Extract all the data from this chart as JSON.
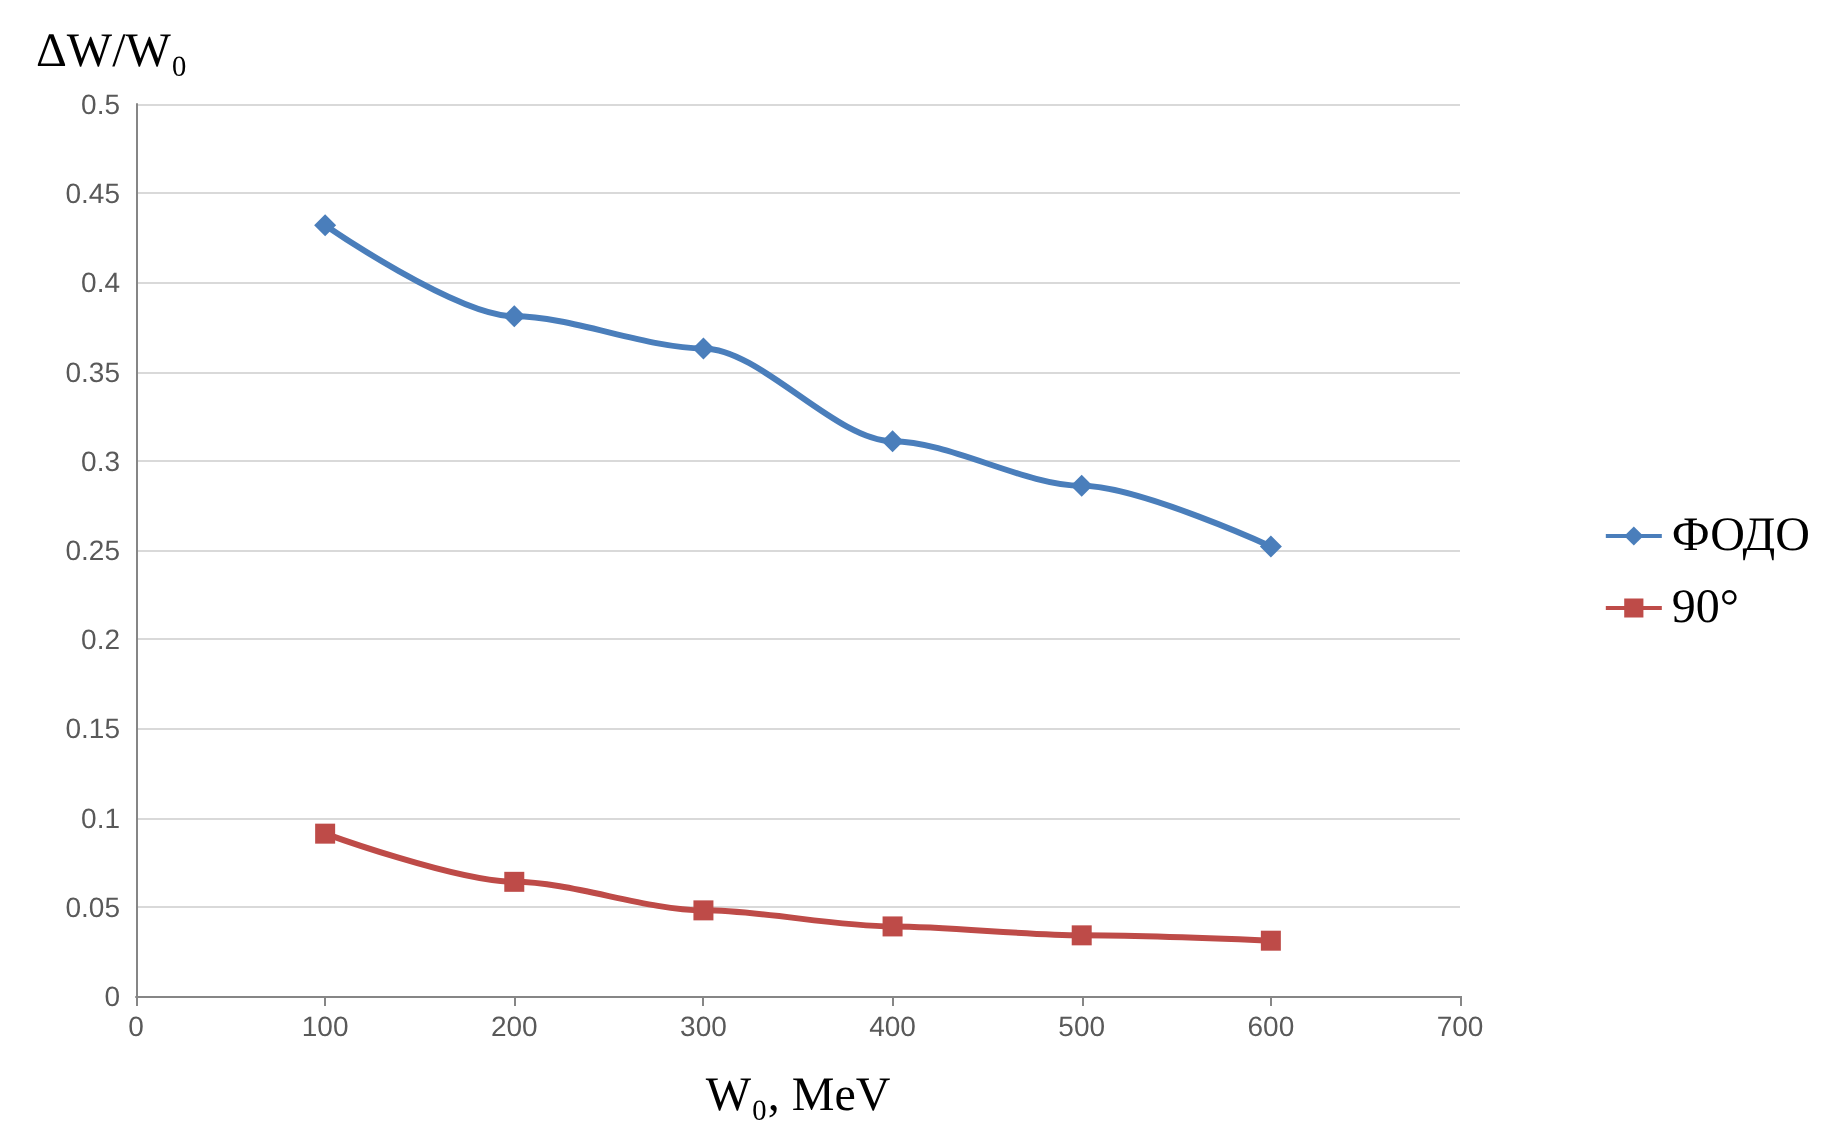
{
  "chart_data": {
    "type": "line",
    "xlabel": "W₀, MeV",
    "ylabel": "ΔW/W₀",
    "x": [
      100,
      200,
      300,
      400,
      500,
      600
    ],
    "series": [
      {
        "name": "ФОДО",
        "color": "#4a7ebb",
        "marker": "diamond",
        "values": [
          0.432,
          0.381,
          0.363,
          0.311,
          0.286,
          0.252
        ]
      },
      {
        "name": "90°",
        "color": "#be4b48",
        "marker": "square",
        "values": [
          0.091,
          0.064,
          0.048,
          0.039,
          0.034,
          0.031
        ]
      }
    ],
    "xlim": [
      0,
      700
    ],
    "xticks": [
      0,
      100,
      200,
      300,
      400,
      500,
      600,
      700
    ],
    "ylim": [
      0,
      0.5
    ],
    "yticks": [
      0,
      0.05,
      0.1,
      0.15,
      0.2,
      0.25,
      0.3,
      0.35,
      0.4,
      0.45,
      0.5
    ],
    "grid": "y",
    "legend": "right"
  }
}
